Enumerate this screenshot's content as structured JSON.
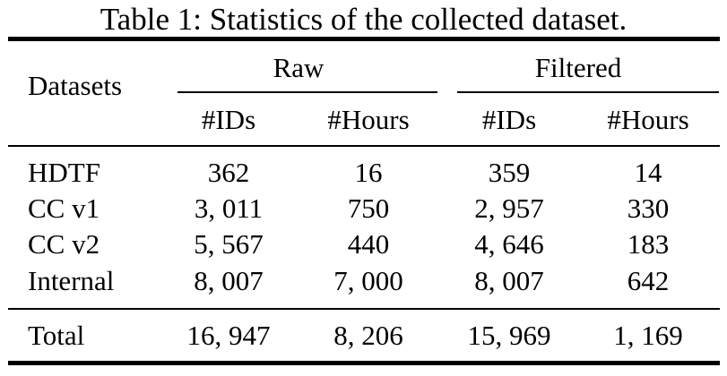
{
  "caption": "Table 1: Statistics of the collected dataset.",
  "header": {
    "datasets": "Datasets",
    "raw": "Raw",
    "filtered": "Filtered",
    "raw_ids": "#IDs",
    "raw_hours": "#Hours",
    "filtered_ids": "#IDs",
    "filtered_hours": "#Hours"
  },
  "rows": [
    {
      "name": "HDTF",
      "raw_ids": "362",
      "raw_hours": "16",
      "filtered_ids": "359",
      "filtered_hours": "14"
    },
    {
      "name": "CC v1",
      "raw_ids": "3, 011",
      "raw_hours": "750",
      "filtered_ids": "2, 957",
      "filtered_hours": "330"
    },
    {
      "name": "CC v2",
      "raw_ids": "5, 567",
      "raw_hours": "440",
      "filtered_ids": "4, 646",
      "filtered_hours": "183"
    },
    {
      "name": "Internal",
      "raw_ids": "8, 007",
      "raw_hours": "7, 000",
      "filtered_ids": "8, 007",
      "filtered_hours": "642"
    }
  ],
  "total": {
    "name": "Total",
    "raw_ids": "16, 947",
    "raw_hours": "8, 206",
    "filtered_ids": "15, 969",
    "filtered_hours": "1, 169"
  }
}
